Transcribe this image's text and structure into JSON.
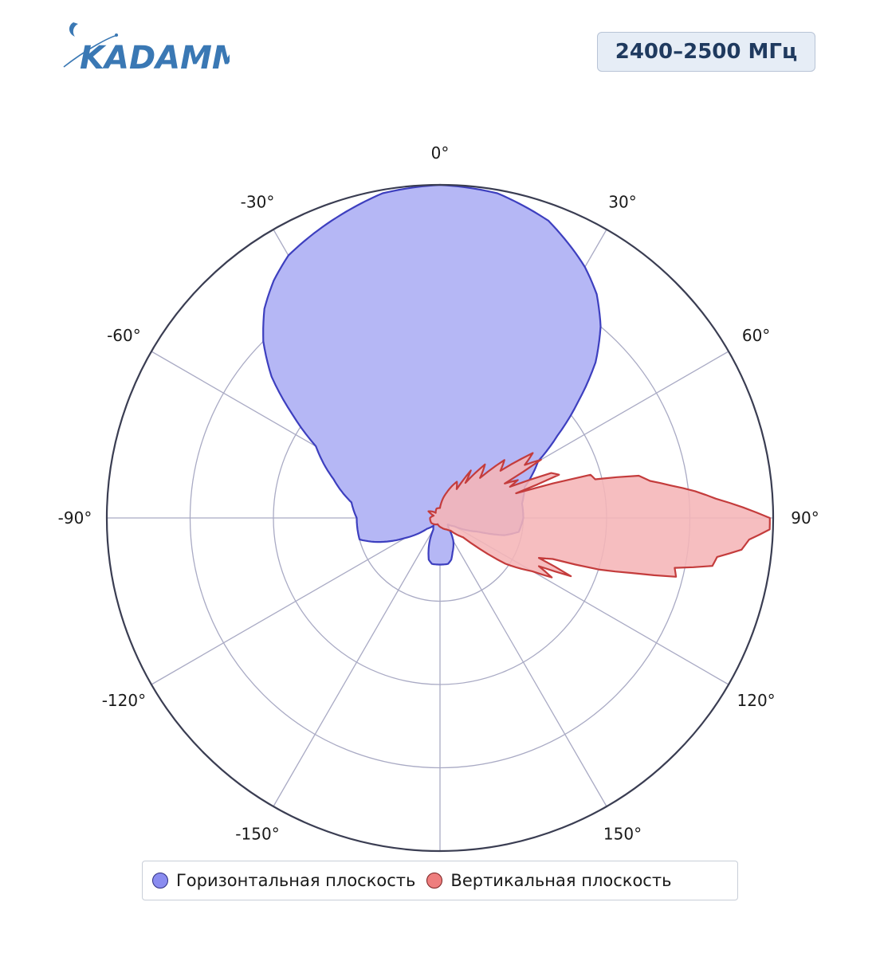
{
  "logo": {
    "text": "KADAMM"
  },
  "band_label": "2400–2500 МГц",
  "legend": {
    "horizontal": "Горизонтальная плоскость",
    "vertical": "Вертикальная плоскость"
  },
  "colors": {
    "horizontal_fill": "#b5b7f5",
    "horizontal_stroke": "#3d3fbf",
    "horizontal_marker": "#8a8cf0",
    "vertical_fill": "#f5b5b7",
    "vertical_stroke": "#c43c3c",
    "vertical_marker": "#ee7e7e",
    "grid": "#a9aac4",
    "frame": "#3a3d52",
    "logo": "#3a78b4"
  },
  "chart_data": {
    "type": "polar-area",
    "theta_direction": "clockwise",
    "theta_zero": "top",
    "angular_ticks": [
      0,
      30,
      60,
      90,
      120,
      150,
      180,
      -150,
      -120,
      -90,
      -60,
      -30
    ],
    "angular_tick_labels": [
      "0°",
      "30°",
      "60°",
      "90°",
      "120°",
      "150°",
      "",
      "-150°",
      "-120°",
      "-90°",
      "-60°",
      "-30°"
    ],
    "radial_range": [
      0,
      1
    ],
    "radial_grid": [
      0.25,
      0.5,
      0.75,
      1.0
    ],
    "radial_tick_labels": false,
    "series": [
      {
        "name": "Горизонтальная плоскость",
        "theta": [
          0,
          10,
          20,
          30,
          35,
          40,
          45,
          50,
          55,
          60,
          70,
          80,
          90,
          100,
          105,
          110,
          120,
          130,
          140,
          150,
          160,
          165,
          170,
          175,
          180,
          185,
          190,
          195,
          200,
          210,
          220,
          230,
          240,
          250,
          255,
          260,
          270,
          280,
          290,
          300,
          305,
          310,
          315,
          320,
          325,
          330,
          340,
          350
        ],
        "r": [
          1.0,
          0.99,
          0.95,
          0.87,
          0.82,
          0.75,
          0.66,
          0.54,
          0.43,
          0.34,
          0.27,
          0.25,
          0.25,
          0.24,
          0.2,
          0.12,
          0.05,
          0.03,
          0.04,
          0.08,
          0.11,
          0.13,
          0.14,
          0.14,
          0.14,
          0.14,
          0.14,
          0.13,
          0.1,
          0.04,
          0.03,
          0.05,
          0.12,
          0.21,
          0.25,
          0.25,
          0.25,
          0.27,
          0.34,
          0.43,
          0.54,
          0.66,
          0.75,
          0.82,
          0.87,
          0.91,
          0.95,
          0.99
        ]
      },
      {
        "name": "Вертикальная плоскость",
        "theta": [
          0,
          15,
          25,
          30,
          33,
          36,
          40,
          45,
          48,
          52,
          55,
          58,
          60,
          62,
          64,
          66,
          68,
          70,
          72,
          74,
          76,
          78,
          80,
          82,
          84,
          86,
          88,
          90,
          92,
          94,
          96,
          98,
          100,
          102,
          104,
          106,
          108,
          110,
          112,
          114,
          116,
          118,
          120,
          125,
          130,
          140,
          150,
          170,
          200,
          240,
          270,
          290,
          300,
          320,
          340
        ],
        "r": [
          0.03,
          0.08,
          0.12,
          0.1,
          0.17,
          0.13,
          0.21,
          0.17,
          0.26,
          0.23,
          0.34,
          0.3,
          0.35,
          0.22,
          0.26,
          0.23,
          0.36,
          0.38,
          0.24,
          0.47,
          0.48,
          0.61,
          0.64,
          0.7,
          0.77,
          0.83,
          0.91,
          0.99,
          0.99,
          0.93,
          0.91,
          0.84,
          0.83,
          0.72,
          0.73,
          0.6,
          0.5,
          0.36,
          0.32,
          0.43,
          0.33,
          0.38,
          0.32,
          0.24,
          0.09,
          0.05,
          0.04,
          0.03,
          0.02,
          0.03,
          0.03,
          0.02,
          0.04,
          0.02,
          0.03
        ]
      }
    ]
  }
}
